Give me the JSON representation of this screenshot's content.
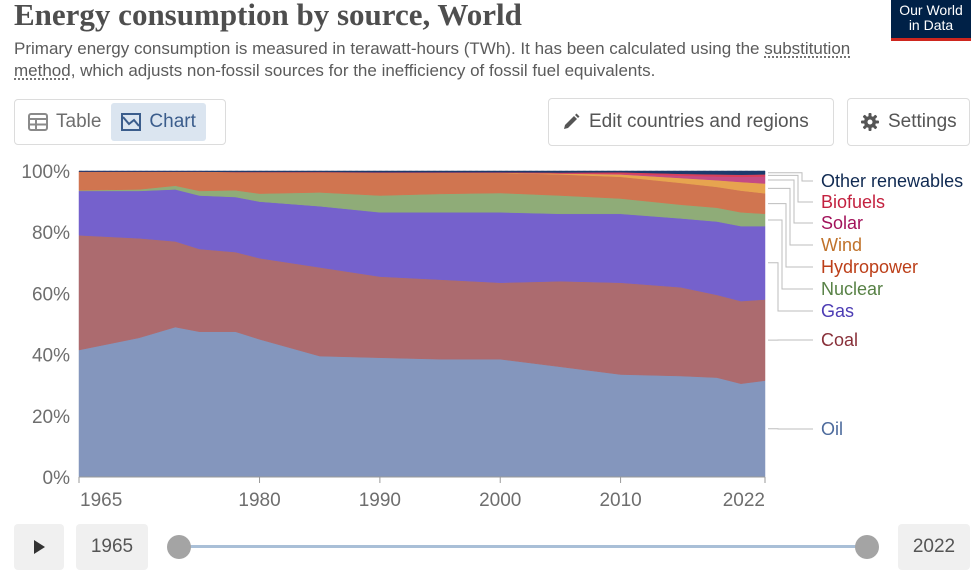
{
  "header": {
    "title": "Energy consumption by source, World",
    "subtitle_part1": "Primary energy consumption is measured in terawatt-hours (TWh). It has been calculated using the ",
    "subtitle_link": "substitution method",
    "subtitle_part2": ", which adjusts non-fossil sources for the inefficiency of fossil fuel equivalents.",
    "logo_line1": "Our World",
    "logo_line2": "in Data"
  },
  "controls": {
    "table_label": "Table",
    "chart_label": "Chart",
    "edit_label": "Edit countries and regions",
    "settings_label": "Settings",
    "start_year": "1965",
    "end_year": "2022"
  },
  "colors": {
    "Oil": "#8496bd",
    "Coal": "#ac6b6f",
    "Gas": "#7561cc",
    "Nuclear": "#8fac78",
    "Hydropower": "#d07550",
    "Wind": "#e7a44f",
    "Solar": "#c44b84",
    "Biofuels": "#d8405a",
    "Other renewables": "#1c3a6c"
  },
  "label_colors": {
    "Oil": "#4c6a9c",
    "Coal": "#883039",
    "Gas": "#4c3cb4",
    "Nuclear": "#578145",
    "Hydropower": "#bc3f19",
    "Wind": "#c0722a",
    "Solar": "#a2135b",
    "Biofuels": "#c3213f",
    "Other renewables": "#102a52"
  },
  "chart_data": {
    "type": "area",
    "stacked": "percent",
    "x": [
      1965,
      1970,
      1973,
      1975,
      1978,
      1980,
      1985,
      1990,
      1995,
      2000,
      2005,
      2010,
      2015,
      2018,
      2020,
      2022
    ],
    "series": [
      {
        "name": "Oil",
        "values": [
          41.5,
          45.5,
          49.0,
          47.5,
          47.5,
          45.0,
          39.5,
          39.0,
          38.5,
          38.5,
          36.0,
          33.5,
          33.0,
          32.5,
          30.5,
          31.5
        ]
      },
      {
        "name": "Coal",
        "values": [
          37.5,
          32.5,
          28.0,
          27.0,
          26.0,
          26.5,
          29.0,
          26.5,
          26.0,
          25.0,
          28.0,
          30.0,
          29.0,
          27.0,
          27.0,
          26.5
        ]
      },
      {
        "name": "Gas",
        "values": [
          14.5,
          15.5,
          17.0,
          17.5,
          18.0,
          18.5,
          20.0,
          21.0,
          22.0,
          23.0,
          22.0,
          22.5,
          22.5,
          24.0,
          24.5,
          24.0
        ]
      },
      {
        "name": "Nuclear",
        "values": [
          0.2,
          0.5,
          1.2,
          1.5,
          2.2,
          2.6,
          4.5,
          5.5,
          6.0,
          6.3,
          6.0,
          5.0,
          4.5,
          4.5,
          4.5,
          4.0
        ]
      },
      {
        "name": "Hydropower",
        "values": [
          6.1,
          5.8,
          4.6,
          6.3,
          6.0,
          7.1,
          6.6,
          7.5,
          6.9,
          6.6,
          6.9,
          7.1,
          7.1,
          6.8,
          7.1,
          6.7
        ]
      },
      {
        "name": "Wind",
        "values": [
          0.0,
          0.0,
          0.0,
          0.0,
          0.0,
          0.0,
          0.0,
          0.0,
          0.1,
          0.1,
          0.3,
          0.8,
          1.6,
          2.2,
          2.8,
          3.2
        ]
      },
      {
        "name": "Solar",
        "values": [
          0.0,
          0.0,
          0.0,
          0.0,
          0.0,
          0.0,
          0.0,
          0.0,
          0.0,
          0.0,
          0.0,
          0.2,
          0.8,
          1.2,
          1.7,
          2.3
        ]
      },
      {
        "name": "Biofuels",
        "values": [
          0.0,
          0.0,
          0.0,
          0.0,
          0.0,
          0.0,
          0.1,
          0.1,
          0.1,
          0.1,
          0.3,
          0.5,
          0.6,
          0.7,
          0.7,
          0.7
        ]
      },
      {
        "name": "Other renewables",
        "values": [
          0.2,
          0.2,
          0.2,
          0.2,
          0.3,
          0.3,
          0.3,
          0.4,
          0.4,
          0.4,
          0.5,
          0.4,
          0.9,
          1.1,
          1.2,
          1.1
        ]
      }
    ],
    "x_ticks": [
      "1965",
      "1980",
      "1990",
      "2000",
      "2010",
      "2022"
    ],
    "y_ticks": [
      "0%",
      "20%",
      "40%",
      "60%",
      "80%",
      "100%"
    ],
    "xlim": [
      1965,
      2022
    ],
    "ylim": [
      0,
      100
    ],
    "legend_placement": "right"
  }
}
